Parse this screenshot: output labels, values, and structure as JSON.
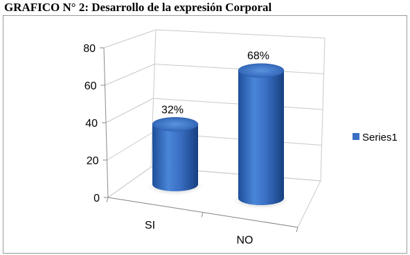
{
  "page": {
    "title": "GRAFICO N° 2: Desarrollo de la expresión Corporal"
  },
  "chart_data": {
    "type": "bar",
    "style": "3d-cylinder",
    "categories": [
      "SI",
      "NO"
    ],
    "series": [
      {
        "name": "Series1",
        "values": [
          32,
          68
        ],
        "data_labels": [
          "32%",
          "68%"
        ],
        "color": "#3a6fc4"
      }
    ],
    "ylim": [
      0,
      80
    ],
    "yticks": [
      0,
      20,
      40,
      60,
      80
    ],
    "grid": true,
    "legend": "right"
  }
}
